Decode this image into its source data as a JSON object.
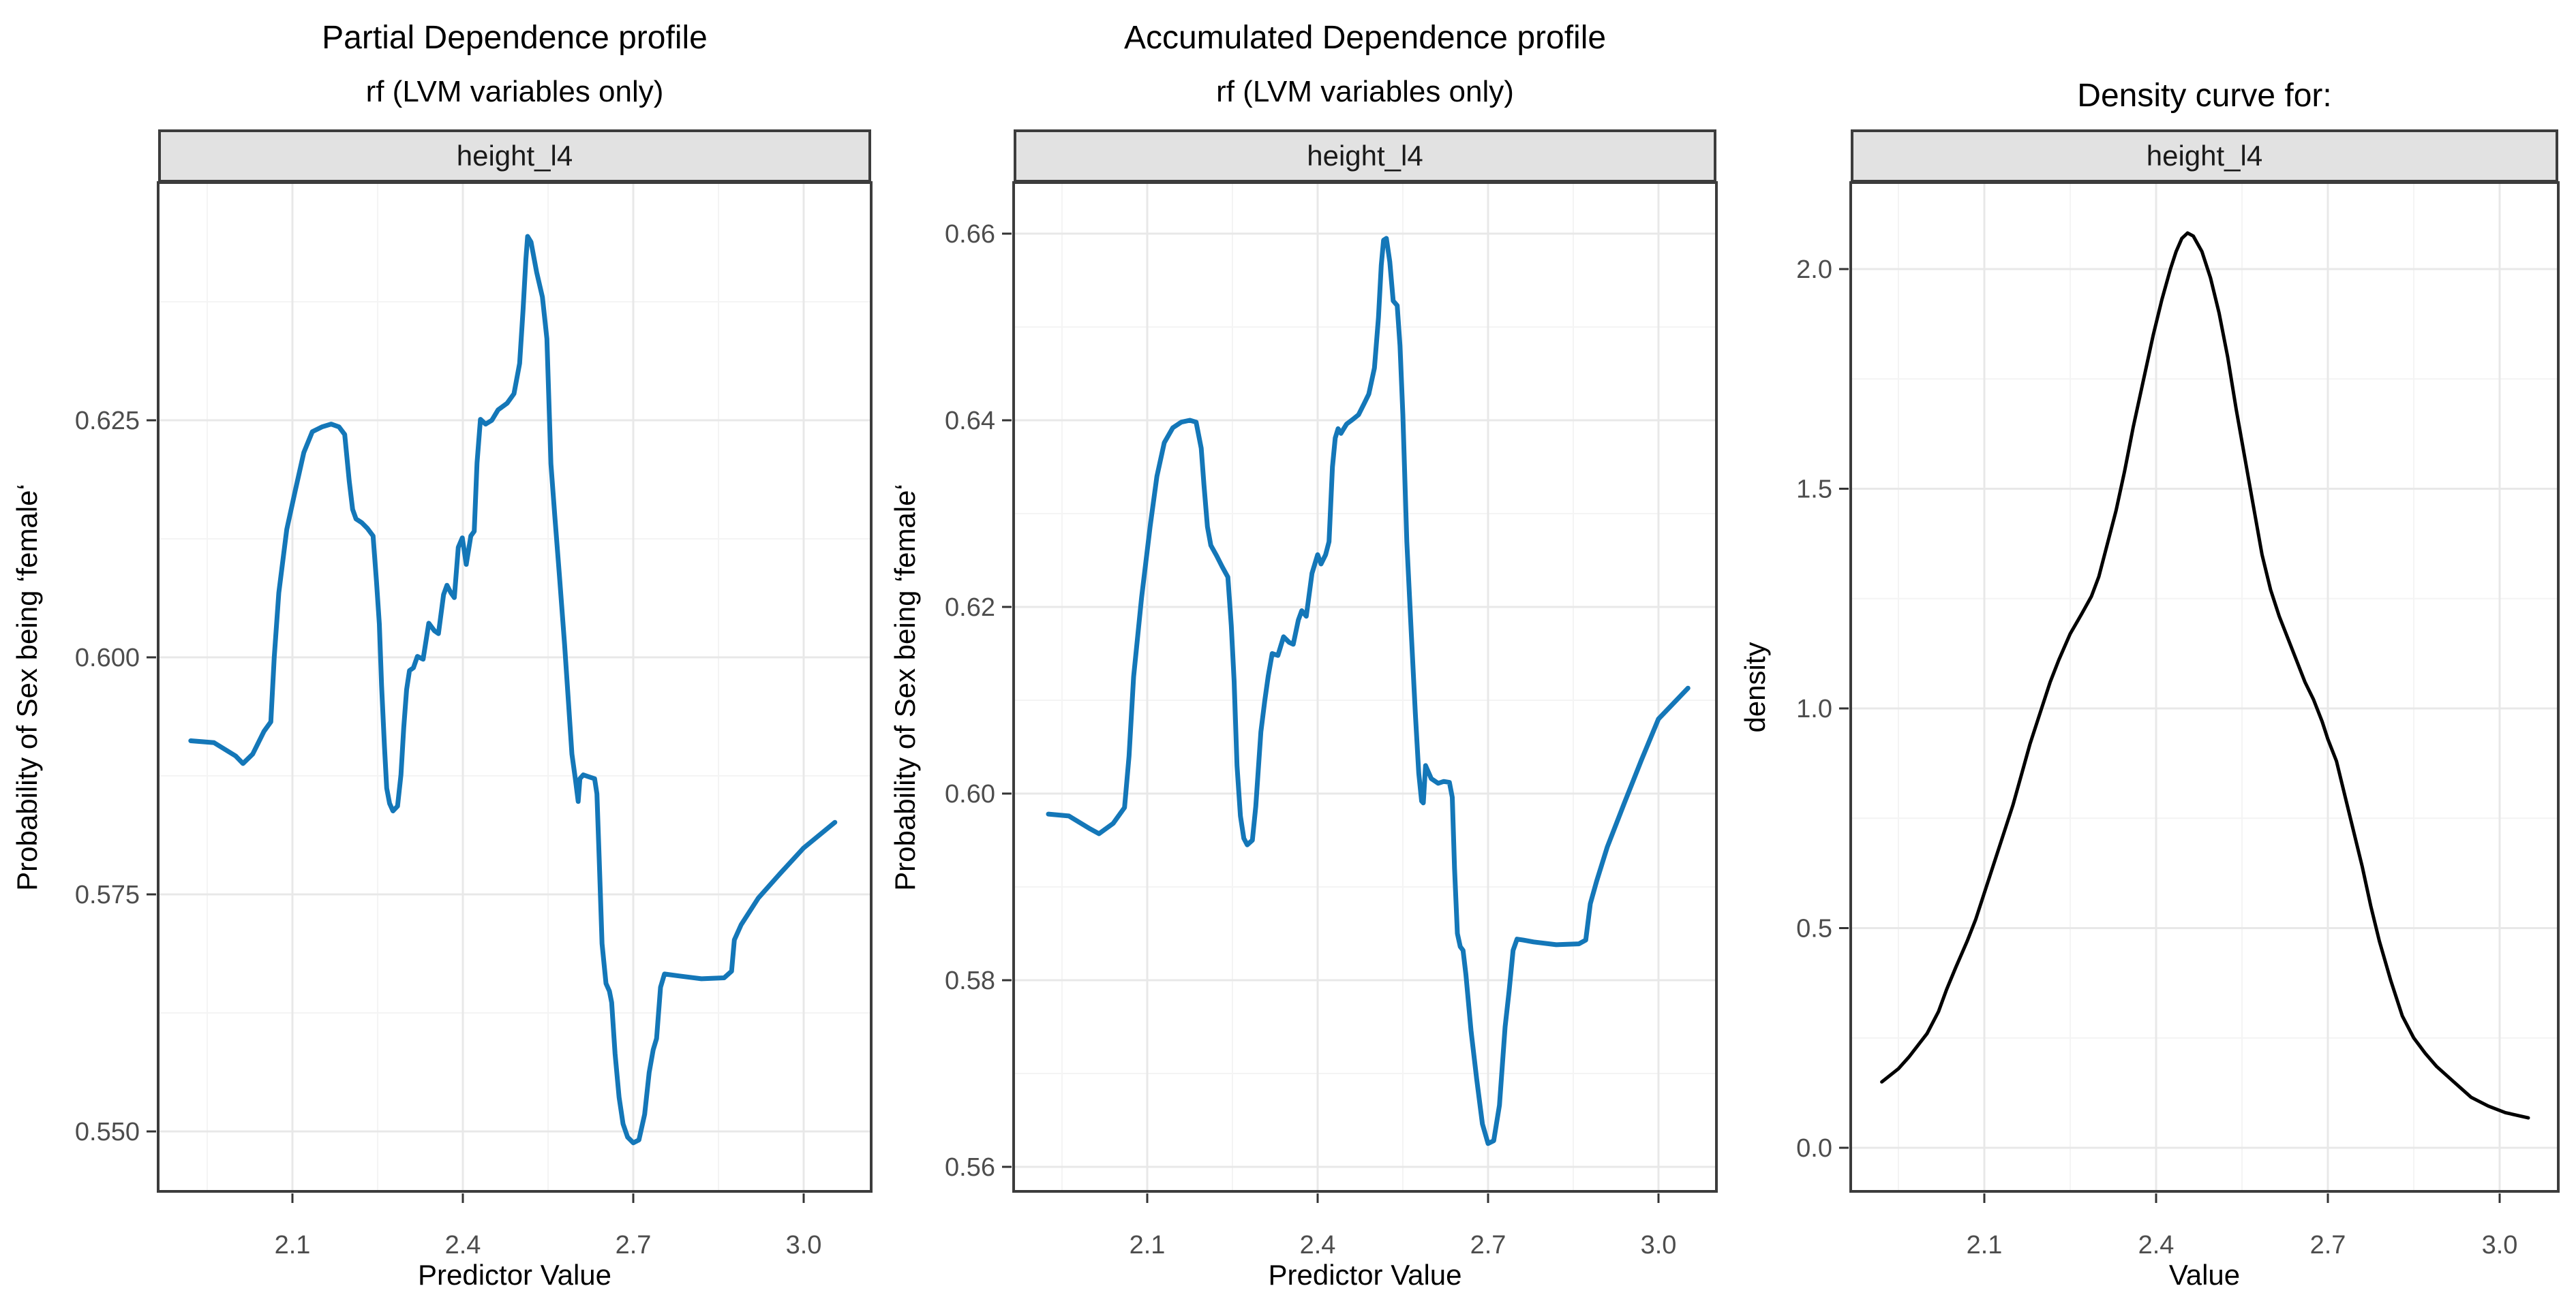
{
  "page": {
    "background": "#ffffff"
  },
  "colors": {
    "blue_line": "#1477b8",
    "black_line": "#000000",
    "strip_bg": "#e2e2e2",
    "strip_border": "#3c3c3c",
    "panel_border": "#3c3c3c",
    "grid_major": "#e8e8e8",
    "grid_minor": "#f4f4f4",
    "tick_mark": "#333333",
    "tick_label": "#4d4d4d",
    "text": "#000000"
  },
  "chart_data": [
    {
      "id": "partial-dependence",
      "type": "line",
      "title": "Partial Dependence profile",
      "subtitle": "rf (LVM variables only)",
      "strip_label": "height_l4",
      "xlabel": "Predictor Value",
      "ylabel": "Probability of Sex being ‘female‘",
      "legend": "none",
      "grid": true,
      "line_color": "#1477b8",
      "line_width": 7,
      "x_range": [
        1.865,
        3.115
      ],
      "y_range": [
        0.5437,
        0.6499
      ],
      "x_ticks": {
        "values": [
          2.1,
          2.4,
          2.7,
          3.0
        ],
        "labels": [
          "2.1",
          "2.4",
          "2.7",
          "3.0"
        ]
      },
      "y_ticks": {
        "values": [
          0.55,
          0.575,
          0.6,
          0.625
        ],
        "labels": [
          "0.550",
          "0.575",
          "0.600",
          "0.625"
        ]
      },
      "x_minor": [
        1.95,
        2.25,
        2.55,
        2.85
      ],
      "y_minor": [
        0.5625,
        0.5875,
        0.6125,
        0.6375
      ],
      "points": [
        [
          1.921,
          0.5912
        ],
        [
          1.962,
          0.591
        ],
        [
          2.0,
          0.5896
        ],
        [
          2.013,
          0.5888
        ],
        [
          2.03,
          0.5898
        ],
        [
          2.05,
          0.5922
        ],
        [
          2.062,
          0.5932
        ],
        [
          2.068,
          0.6
        ],
        [
          2.076,
          0.6068
        ],
        [
          2.09,
          0.6135
        ],
        [
          2.105,
          0.6176
        ],
        [
          2.12,
          0.6216
        ],
        [
          2.135,
          0.6238
        ],
        [
          2.152,
          0.6243
        ],
        [
          2.168,
          0.6246
        ],
        [
          2.182,
          0.6243
        ],
        [
          2.192,
          0.6235
        ],
        [
          2.2,
          0.6186
        ],
        [
          2.206,
          0.6156
        ],
        [
          2.212,
          0.6146
        ],
        [
          2.222,
          0.6142
        ],
        [
          2.232,
          0.6136
        ],
        [
          2.242,
          0.6128
        ],
        [
          2.248,
          0.608
        ],
        [
          2.253,
          0.6035
        ],
        [
          2.257,
          0.597
        ],
        [
          2.262,
          0.5906
        ],
        [
          2.266,
          0.5862
        ],
        [
          2.271,
          0.5846
        ],
        [
          2.277,
          0.5838
        ],
        [
          2.285,
          0.5843
        ],
        [
          2.291,
          0.5876
        ],
        [
          2.296,
          0.5926
        ],
        [
          2.301,
          0.5966
        ],
        [
          2.306,
          0.5986
        ],
        [
          2.313,
          0.5989
        ],
        [
          2.32,
          0.6001
        ],
        [
          2.33,
          0.5998
        ],
        [
          2.34,
          0.6036
        ],
        [
          2.35,
          0.6028
        ],
        [
          2.357,
          0.6025
        ],
        [
          2.366,
          0.6066
        ],
        [
          2.372,
          0.6076
        ],
        [
          2.379,
          0.6068
        ],
        [
          2.385,
          0.6063
        ],
        [
          2.392,
          0.6116
        ],
        [
          2.399,
          0.6126
        ],
        [
          2.406,
          0.6098
        ],
        [
          2.414,
          0.6128
        ],
        [
          2.42,
          0.6133
        ],
        [
          2.425,
          0.6205
        ],
        [
          2.431,
          0.6251
        ],
        [
          2.44,
          0.6246
        ],
        [
          2.451,
          0.625
        ],
        [
          2.462,
          0.6261
        ],
        [
          2.478,
          0.6268
        ],
        [
          2.49,
          0.6278
        ],
        [
          2.5,
          0.631
        ],
        [
          2.506,
          0.6366
        ],
        [
          2.511,
          0.642
        ],
        [
          2.514,
          0.6444
        ],
        [
          2.52,
          0.6438
        ],
        [
          2.53,
          0.6406
        ],
        [
          2.54,
          0.638
        ],
        [
          2.548,
          0.6336
        ],
        [
          2.555,
          0.6204
        ],
        [
          2.562,
          0.6148
        ],
        [
          2.57,
          0.6086
        ],
        [
          2.579,
          0.6014
        ],
        [
          2.586,
          0.5952
        ],
        [
          2.592,
          0.5898
        ],
        [
          2.598,
          0.5872
        ],
        [
          2.603,
          0.5848
        ],
        [
          2.606,
          0.5872
        ],
        [
          2.612,
          0.5876
        ],
        [
          2.622,
          0.5874
        ],
        [
          2.632,
          0.5872
        ],
        [
          2.636,
          0.5856
        ],
        [
          2.64,
          0.5788
        ],
        [
          2.645,
          0.5698
        ],
        [
          2.652,
          0.5656
        ],
        [
          2.658,
          0.5648
        ],
        [
          2.662,
          0.5636
        ],
        [
          2.668,
          0.5582
        ],
        [
          2.675,
          0.5536
        ],
        [
          2.682,
          0.5508
        ],
        [
          2.69,
          0.5494
        ],
        [
          2.7,
          0.5488
        ],
        [
          2.71,
          0.5491
        ],
        [
          2.72,
          0.5518
        ],
        [
          2.728,
          0.5562
        ],
        [
          2.735,
          0.5586
        ],
        [
          2.741,
          0.5598
        ],
        [
          2.748,
          0.5652
        ],
        [
          2.755,
          0.5666
        ],
        [
          2.78,
          0.5664
        ],
        [
          2.82,
          0.5661
        ],
        [
          2.86,
          0.5662
        ],
        [
          2.873,
          0.5669
        ],
        [
          2.878,
          0.5702
        ],
        [
          2.89,
          0.5718
        ],
        [
          2.92,
          0.5746
        ],
        [
          2.96,
          0.5773
        ],
        [
          3.0,
          0.5799
        ],
        [
          3.055,
          0.5826
        ]
      ]
    },
    {
      "id": "accumulated-dependence",
      "type": "line",
      "title": "Accumulated Dependence profile",
      "subtitle": "rf (LVM variables only)",
      "strip_label": "height_l4",
      "xlabel": "Predictor Value",
      "ylabel": "Probability of Sex being ‘female‘",
      "legend": "none",
      "grid": true,
      "line_color": "#1477b8",
      "line_width": 7,
      "x_range": [
        1.865,
        3.115
      ],
      "y_range": [
        0.5574,
        0.6655
      ],
      "x_ticks": {
        "values": [
          2.1,
          2.4,
          2.7,
          3.0
        ],
        "labels": [
          "2.1",
          "2.4",
          "2.7",
          "3.0"
        ]
      },
      "y_ticks": {
        "values": [
          0.56,
          0.58,
          0.6,
          0.62,
          0.64,
          0.66
        ],
        "labels": [
          "0.56",
          "0.58",
          "0.60",
          "0.62",
          "0.64",
          "0.66"
        ]
      },
      "x_minor": [
        1.95,
        2.25,
        2.55,
        2.85
      ],
      "y_minor": [
        0.57,
        0.59,
        0.61,
        0.63,
        0.65
      ],
      "points": [
        [
          1.926,
          0.5978
        ],
        [
          1.962,
          0.5976
        ],
        [
          2.0,
          0.5962
        ],
        [
          2.015,
          0.5957
        ],
        [
          2.04,
          0.5968
        ],
        [
          2.06,
          0.5985
        ],
        [
          2.068,
          0.604
        ],
        [
          2.076,
          0.6125
        ],
        [
          2.09,
          0.621
        ],
        [
          2.105,
          0.6286
        ],
        [
          2.117,
          0.634
        ],
        [
          2.13,
          0.6376
        ],
        [
          2.145,
          0.6392
        ],
        [
          2.16,
          0.6398
        ],
        [
          2.175,
          0.64
        ],
        [
          2.186,
          0.6398
        ],
        [
          2.195,
          0.637
        ],
        [
          2.2,
          0.633
        ],
        [
          2.206,
          0.6286
        ],
        [
          2.212,
          0.6266
        ],
        [
          2.222,
          0.6255
        ],
        [
          2.232,
          0.6243
        ],
        [
          2.242,
          0.6232
        ],
        [
          2.248,
          0.618
        ],
        [
          2.253,
          0.612
        ],
        [
          2.258,
          0.603
        ],
        [
          2.264,
          0.5976
        ],
        [
          2.27,
          0.5952
        ],
        [
          2.276,
          0.5945
        ],
        [
          2.285,
          0.595
        ],
        [
          2.291,
          0.5986
        ],
        [
          2.3,
          0.6066
        ],
        [
          2.307,
          0.61
        ],
        [
          2.313,
          0.6126
        ],
        [
          2.32,
          0.615
        ],
        [
          2.33,
          0.6148
        ],
        [
          2.34,
          0.6168
        ],
        [
          2.35,
          0.6162
        ],
        [
          2.357,
          0.616
        ],
        [
          2.366,
          0.6186
        ],
        [
          2.372,
          0.6196
        ],
        [
          2.38,
          0.619
        ],
        [
          2.39,
          0.6236
        ],
        [
          2.4,
          0.6256
        ],
        [
          2.406,
          0.6246
        ],
        [
          2.414,
          0.6256
        ],
        [
          2.42,
          0.627
        ],
        [
          2.426,
          0.635
        ],
        [
          2.431,
          0.6381
        ],
        [
          2.436,
          0.6391
        ],
        [
          2.441,
          0.6386
        ],
        [
          2.446,
          0.6391
        ],
        [
          2.451,
          0.6396
        ],
        [
          2.462,
          0.6401
        ],
        [
          2.472,
          0.6406
        ],
        [
          2.482,
          0.6418
        ],
        [
          2.49,
          0.6428
        ],
        [
          2.5,
          0.6456
        ],
        [
          2.507,
          0.651
        ],
        [
          2.512,
          0.6566
        ],
        [
          2.516,
          0.6593
        ],
        [
          2.521,
          0.6595
        ],
        [
          2.527,
          0.657
        ],
        [
          2.533,
          0.6528
        ],
        [
          2.54,
          0.6523
        ],
        [
          2.545,
          0.648
        ],
        [
          2.55,
          0.6406
        ],
        [
          2.557,
          0.627
        ],
        [
          2.565,
          0.617
        ],
        [
          2.572,
          0.6086
        ],
        [
          2.578,
          0.6022
        ],
        [
          2.583,
          0.5992
        ],
        [
          2.586,
          0.599
        ],
        [
          2.59,
          0.603
        ],
        [
          2.6,
          0.6016
        ],
        [
          2.612,
          0.6011
        ],
        [
          2.622,
          0.6013
        ],
        [
          2.632,
          0.6012
        ],
        [
          2.637,
          0.5996
        ],
        [
          2.641,
          0.592
        ],
        [
          2.646,
          0.585
        ],
        [
          2.651,
          0.5836
        ],
        [
          2.656,
          0.5832
        ],
        [
          2.661,
          0.5806
        ],
        [
          2.67,
          0.5746
        ],
        [
          2.68,
          0.5694
        ],
        [
          2.69,
          0.5646
        ],
        [
          2.7,
          0.5625
        ],
        [
          2.71,
          0.5628
        ],
        [
          2.72,
          0.5666
        ],
        [
          2.73,
          0.575
        ],
        [
          2.737,
          0.5788
        ],
        [
          2.744,
          0.5832
        ],
        [
          2.751,
          0.5844
        ],
        [
          2.762,
          0.5843
        ],
        [
          2.78,
          0.5841
        ],
        [
          2.82,
          0.5838
        ],
        [
          2.86,
          0.5839
        ],
        [
          2.872,
          0.5843
        ],
        [
          2.88,
          0.5882
        ],
        [
          2.891,
          0.5906
        ],
        [
          2.91,
          0.5943
        ],
        [
          2.94,
          0.599
        ],
        [
          2.97,
          0.6036
        ],
        [
          3.0,
          0.608
        ],
        [
          3.052,
          0.6113
        ]
      ]
    },
    {
      "id": "density-curve",
      "type": "line",
      "title": "Density curve for:",
      "subtitle": null,
      "strip_label": "height_l4",
      "xlabel": "Value",
      "ylabel": "density",
      "legend": "none",
      "grid": true,
      "line_color": "#000000",
      "line_width": 5,
      "x_range": [
        1.867,
        3.102
      ],
      "y_range": [
        -0.099,
        2.196
      ],
      "x_ticks": {
        "values": [
          2.1,
          2.4,
          2.7,
          3.0
        ],
        "labels": [
          "2.1",
          "2.4",
          "2.7",
          "3.0"
        ]
      },
      "y_ticks": {
        "values": [
          0.0,
          0.5,
          1.0,
          1.5,
          2.0
        ],
        "labels": [
          "0.0",
          "0.5",
          "1.0",
          "1.5",
          "2.0"
        ]
      },
      "x_minor": [
        1.95,
        2.25,
        2.55,
        2.85
      ],
      "y_minor": [
        0.25,
        0.75,
        1.25,
        1.75
      ],
      "points": [
        [
          1.921,
          0.15
        ],
        [
          1.95,
          0.18
        ],
        [
          1.968,
          0.206
        ],
        [
          2.0,
          0.26
        ],
        [
          2.02,
          0.31
        ],
        [
          2.034,
          0.36
        ],
        [
          2.05,
          0.41
        ],
        [
          2.07,
          0.47
        ],
        [
          2.085,
          0.52
        ],
        [
          2.1,
          0.58
        ],
        [
          2.12,
          0.66
        ],
        [
          2.135,
          0.72
        ],
        [
          2.15,
          0.78
        ],
        [
          2.165,
          0.85
        ],
        [
          2.18,
          0.92
        ],
        [
          2.2,
          1.0
        ],
        [
          2.215,
          1.06
        ],
        [
          2.23,
          1.11
        ],
        [
          2.25,
          1.17
        ],
        [
          2.27,
          1.215
        ],
        [
          2.287,
          1.255
        ],
        [
          2.3,
          1.3
        ],
        [
          2.312,
          1.36
        ],
        [
          2.33,
          1.45
        ],
        [
          2.345,
          1.54
        ],
        [
          2.36,
          1.64
        ],
        [
          2.38,
          1.76
        ],
        [
          2.395,
          1.85
        ],
        [
          2.41,
          1.93
        ],
        [
          2.425,
          2.0
        ],
        [
          2.435,
          2.04
        ],
        [
          2.445,
          2.07
        ],
        [
          2.455,
          2.082
        ],
        [
          2.465,
          2.075
        ],
        [
          2.48,
          2.04
        ],
        [
          2.495,
          1.98
        ],
        [
          2.51,
          1.9
        ],
        [
          2.525,
          1.8
        ],
        [
          2.54,
          1.68
        ],
        [
          2.555,
          1.57
        ],
        [
          2.57,
          1.46
        ],
        [
          2.585,
          1.35
        ],
        [
          2.6,
          1.27
        ],
        [
          2.615,
          1.21
        ],
        [
          2.63,
          1.16
        ],
        [
          2.645,
          1.11
        ],
        [
          2.66,
          1.06
        ],
        [
          2.675,
          1.02
        ],
        [
          2.69,
          0.97
        ],
        [
          2.7,
          0.93
        ],
        [
          2.715,
          0.88
        ],
        [
          2.73,
          0.8
        ],
        [
          2.745,
          0.72
        ],
        [
          2.76,
          0.64
        ],
        [
          2.775,
          0.55
        ],
        [
          2.79,
          0.47
        ],
        [
          2.81,
          0.38
        ],
        [
          2.83,
          0.3
        ],
        [
          2.85,
          0.25
        ],
        [
          2.87,
          0.215
        ],
        [
          2.89,
          0.185
        ],
        [
          2.92,
          0.15
        ],
        [
          2.95,
          0.115
        ],
        [
          2.98,
          0.095
        ],
        [
          3.01,
          0.08
        ],
        [
          3.05,
          0.068
        ]
      ]
    }
  ]
}
